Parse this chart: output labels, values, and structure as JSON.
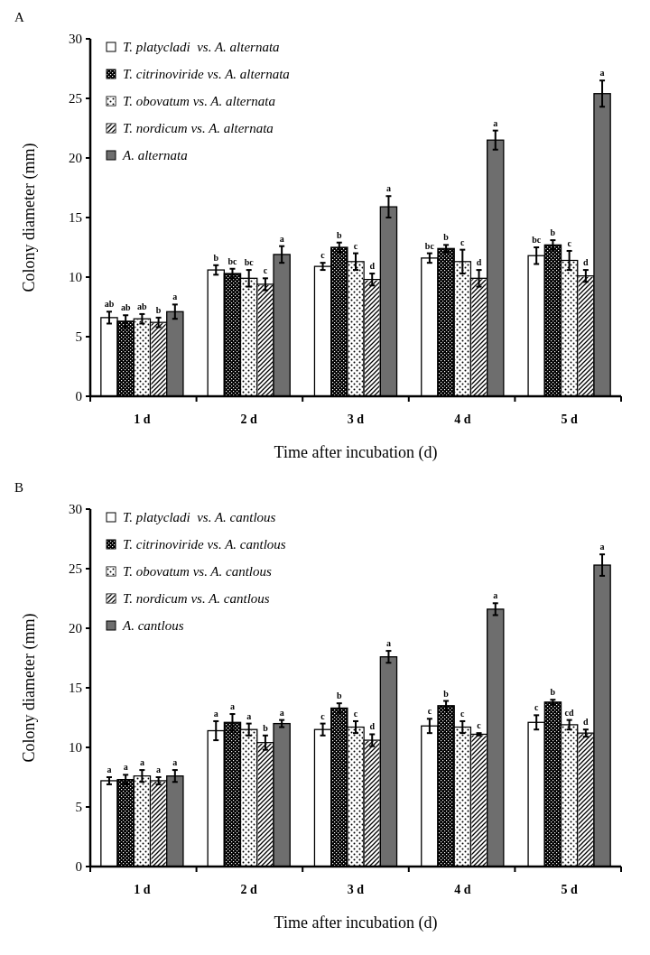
{
  "chart_data": [
    {
      "type": "bar",
      "title": "A",
      "xlabel": "Time after incubation (d)",
      "ylabel": "Colony diameter (mm)",
      "categories": [
        "1 d",
        "2 d",
        "3 d",
        "4 d",
        "5 d"
      ],
      "ylim": [
        0,
        30
      ],
      "yticks": [
        0,
        5,
        10,
        15,
        20,
        25,
        30
      ],
      "grid": false,
      "legend": "top left",
      "series": [
        {
          "name": "T. platycladi  vs. A. alternata",
          "color": "#ffffff",
          "values": [
            6.6,
            10.6,
            10.9,
            11.6,
            11.8
          ],
          "errors": [
            0.5,
            0.4,
            0.3,
            0.4,
            0.7
          ],
          "value_labels": [
            "ab",
            "b",
            "c",
            "bc",
            "bc"
          ]
        },
        {
          "name": "T. citrinoviride vs. A. alternata",
          "color": "#000000",
          "values": [
            6.3,
            10.3,
            12.5,
            12.4,
            12.7
          ],
          "errors": [
            0.5,
            0.4,
            0.4,
            0.3,
            0.4
          ],
          "value_labels": [
            "ab",
            "bc",
            "b",
            "b",
            "b"
          ]
        },
        {
          "name": "T. obovatum vs. A. alternata",
          "color": "#ffffff",
          "values": [
            6.5,
            9.9,
            11.3,
            11.3,
            11.4
          ],
          "errors": [
            0.4,
            0.7,
            0.7,
            1.0,
            0.8
          ],
          "value_labels": [
            "ab",
            "bc",
            "c",
            "c",
            "c"
          ]
        },
        {
          "name": "T. nordicum vs. A. alternata",
          "color": "#ffffff",
          "values": [
            6.2,
            9.4,
            9.8,
            9.9,
            10.1
          ],
          "errors": [
            0.4,
            0.5,
            0.5,
            0.7,
            0.5
          ],
          "value_labels": [
            "b",
            "c",
            "d",
            "d",
            "d"
          ]
        },
        {
          "name": "A. alternata",
          "color": "#6e6e6e",
          "values": [
            7.1,
            11.9,
            15.9,
            21.5,
            25.4
          ],
          "errors": [
            0.6,
            0.7,
            0.9,
            0.8,
            1.1
          ],
          "value_labels": [
            "a",
            "a",
            "a",
            "a",
            "a"
          ]
        }
      ]
    },
    {
      "type": "bar",
      "title": "B",
      "xlabel": "Time after incubation (d)",
      "ylabel": "Colony diameter (mm)",
      "categories": [
        "1 d",
        "2 d",
        "3 d",
        "4 d",
        "5 d"
      ],
      "ylim": [
        0,
        30
      ],
      "yticks": [
        0,
        5,
        10,
        15,
        20,
        25,
        30
      ],
      "grid": false,
      "legend": "top left",
      "series": [
        {
          "name": "T. platycladi  vs. A. cantlous",
          "color": "#ffffff",
          "values": [
            7.2,
            11.4,
            11.5,
            11.8,
            12.1
          ],
          "errors": [
            0.3,
            0.8,
            0.5,
            0.6,
            0.6
          ],
          "value_labels": [
            "a",
            "a",
            "c",
            "c",
            "c"
          ]
        },
        {
          "name": "T. citrinoviride vs. A. cantlous",
          "color": "#000000",
          "values": [
            7.3,
            12.1,
            13.3,
            13.5,
            13.8
          ],
          "errors": [
            0.4,
            0.7,
            0.4,
            0.4,
            0.2
          ],
          "value_labels": [
            "a",
            "a",
            "b",
            "b",
            "b"
          ]
        },
        {
          "name": "T. obovatum vs. A. cantlous",
          "color": "#ffffff",
          "values": [
            7.6,
            11.5,
            11.7,
            11.7,
            11.9
          ],
          "errors": [
            0.5,
            0.5,
            0.5,
            0.5,
            0.4
          ],
          "value_labels": [
            "a",
            "a",
            "c",
            "c",
            "cd"
          ]
        },
        {
          "name": "T. nordicum vs. A. cantlous",
          "color": "#ffffff",
          "values": [
            7.2,
            10.4,
            10.6,
            11.1,
            11.2
          ],
          "errors": [
            0.3,
            0.6,
            0.5,
            0.1,
            0.3
          ],
          "value_labels": [
            "a",
            "b",
            "d",
            "c",
            "d"
          ]
        },
        {
          "name": "A. cantlous",
          "color": "#6e6e6e",
          "values": [
            7.6,
            12.0,
            17.6,
            21.6,
            25.3
          ],
          "errors": [
            0.5,
            0.3,
            0.5,
            0.5,
            0.9
          ],
          "value_labels": [
            "a",
            "a",
            "a",
            "a",
            "a"
          ]
        }
      ]
    }
  ]
}
